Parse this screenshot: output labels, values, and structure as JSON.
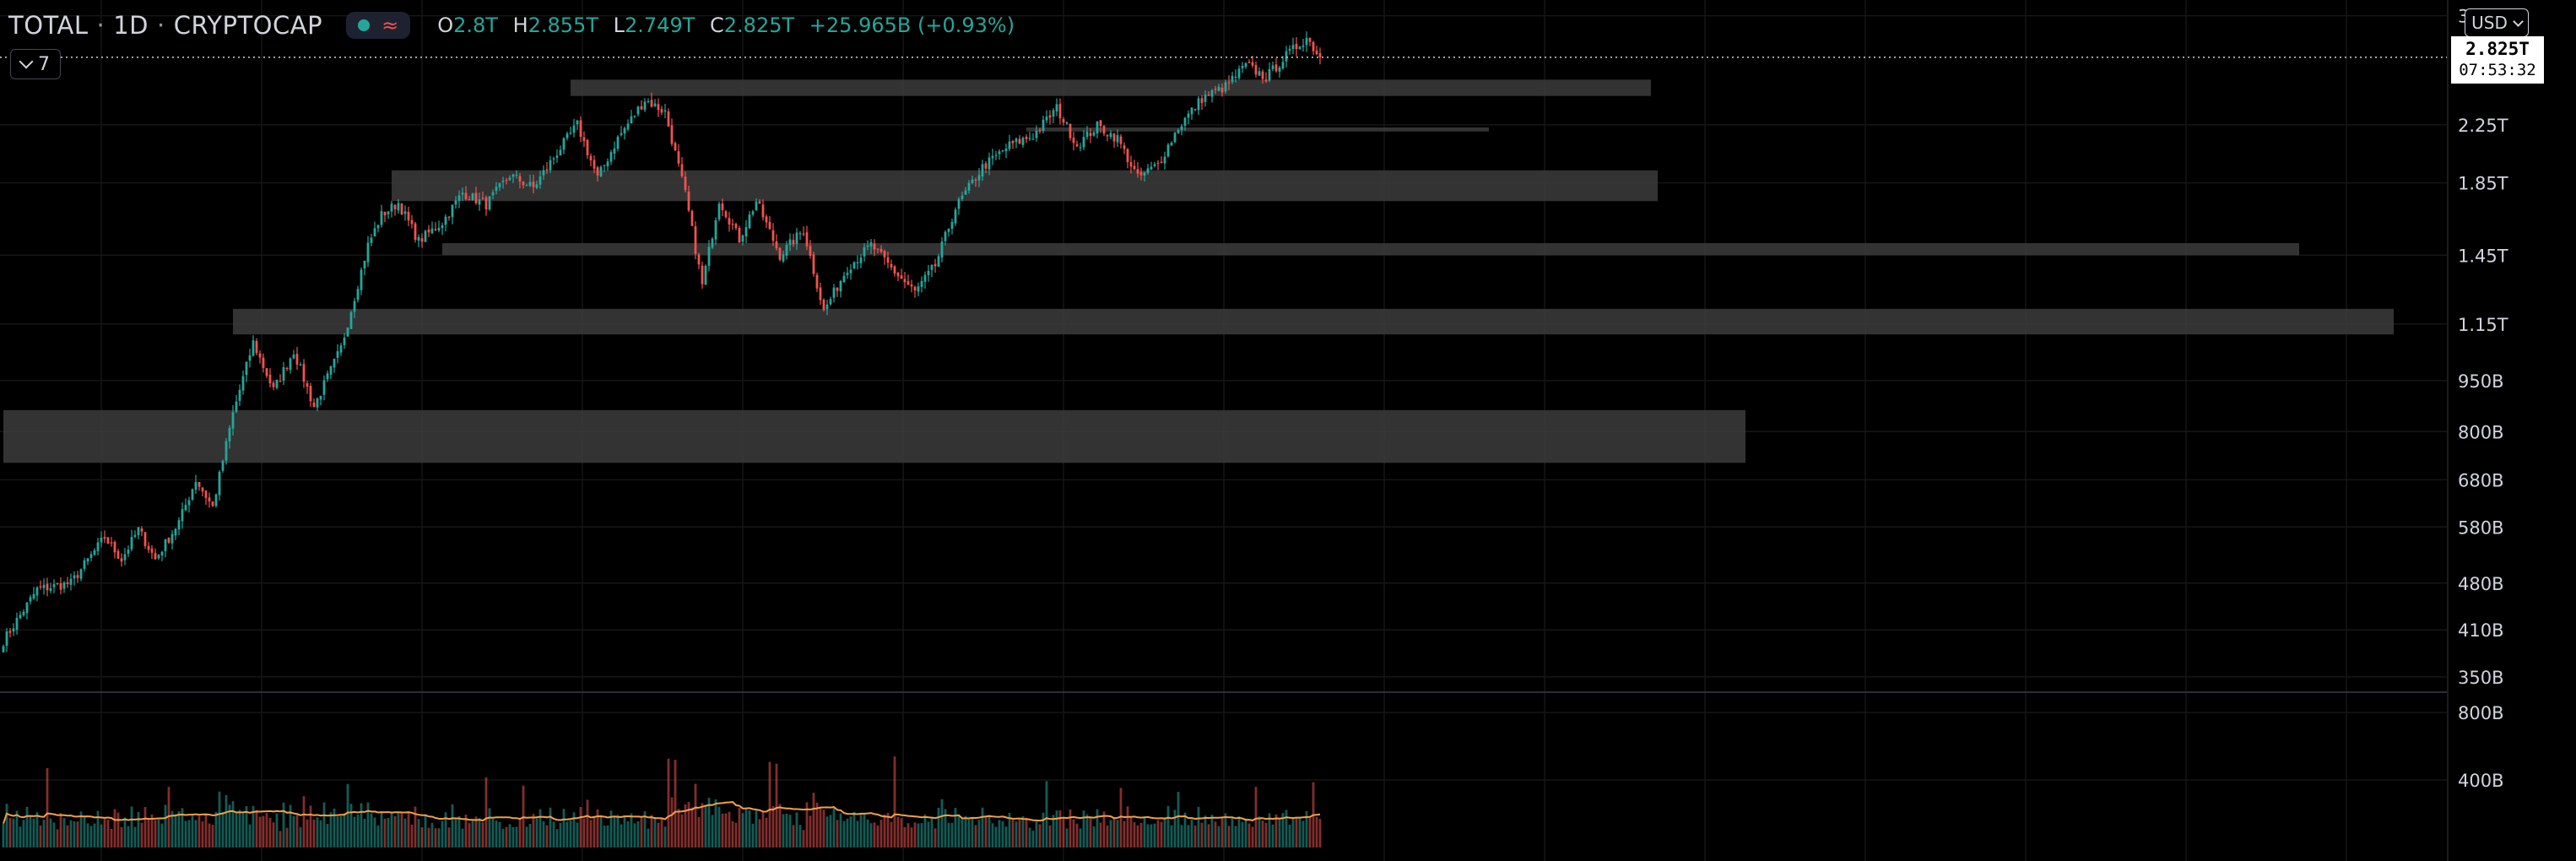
{
  "header": {
    "symbol": "TOTAL",
    "interval": "1D",
    "exchange": "CRYPTOCAP",
    "status_icons": [
      "market-open-dot-icon",
      "wave-icon"
    ],
    "ohlc": {
      "o_label": "O",
      "o": "2.8T",
      "h_label": "H",
      "h": "2.855T",
      "l_label": "L",
      "l": "2.749T",
      "c_label": "C",
      "c": "2.825T",
      "change": "+25.965B (+0.93%)"
    }
  },
  "collapse_button": {
    "label": "7"
  },
  "currency_selector": {
    "value": "USD"
  },
  "last_price_tag": {
    "price": "2.825T",
    "countdown": "07:53:32"
  },
  "colors": {
    "up": "#26a69a",
    "down": "#ef5350",
    "background": "#000000",
    "zone": "#3c3c3c",
    "volume_ma": "#f0a04b",
    "axis_text": "#d1d4dc"
  },
  "chart_data": [
    {
      "type": "candlestick",
      "scale": "log",
      "y_axis_ticks": [
        "3.25T",
        "2.25T",
        "1.85T",
        "1.45T",
        "1.15T",
        "950B",
        "800B",
        "680B",
        "580B",
        "480B",
        "410B",
        "350B"
      ],
      "y_axis_values": [
        3250,
        2250,
        1850,
        1450,
        1150,
        950,
        800,
        680,
        580,
        480,
        410,
        350
      ],
      "unit": "B",
      "ylim": [
        340,
        3350
      ],
      "last_price": 2825,
      "grid": true,
      "anchors": [
        [
          0,
          395
        ],
        [
          10,
          470
        ],
        [
          20,
          480
        ],
        [
          30,
          560
        ],
        [
          35,
          520
        ],
        [
          40,
          575
        ],
        [
          45,
          520
        ],
        [
          52,
          590
        ],
        [
          57,
          680
        ],
        [
          62,
          620
        ],
        [
          68,
          850
        ],
        [
          74,
          1080
        ],
        [
          80,
          920
        ],
        [
          86,
          1050
        ],
        [
          92,
          870
        ],
        [
          100,
          1060
        ],
        [
          108,
          1500
        ],
        [
          112,
          1660
        ],
        [
          117,
          1730
        ],
        [
          123,
          1520
        ],
        [
          130,
          1620
        ],
        [
          136,
          1790
        ],
        [
          143,
          1720
        ],
        [
          150,
          1900
        ],
        [
          157,
          1820
        ],
        [
          164,
          2050
        ],
        [
          170,
          2250
        ],
        [
          176,
          1880
        ],
        [
          182,
          2150
        ],
        [
          190,
          2450
        ],
        [
          196,
          2350
        ],
        [
          202,
          1780
        ],
        [
          207,
          1310
        ],
        [
          212,
          1750
        ],
        [
          218,
          1530
        ],
        [
          223,
          1740
        ],
        [
          230,
          1450
        ],
        [
          237,
          1580
        ],
        [
          243,
          1200
        ],
        [
          250,
          1390
        ],
        [
          257,
          1500
        ],
        [
          264,
          1370
        ],
        [
          270,
          1280
        ],
        [
          276,
          1400
        ],
        [
          282,
          1700
        ],
        [
          290,
          1950
        ],
        [
          298,
          2100
        ],
        [
          305,
          2170
        ],
        [
          312,
          2380
        ],
        [
          318,
          2100
        ],
        [
          324,
          2240
        ],
        [
          330,
          2150
        ],
        [
          336,
          1880
        ],
        [
          342,
          1970
        ],
        [
          348,
          2230
        ],
        [
          355,
          2460
        ],
        [
          362,
          2560
        ],
        [
          368,
          2750
        ],
        [
          374,
          2640
        ],
        [
          380,
          2840
        ],
        [
          386,
          3020
        ],
        [
          390,
          2825
        ]
      ],
      "n_candles": 391
    },
    {
      "type": "bar",
      "name": "Volume",
      "y_axis_ticks": [
        "800B",
        "400B"
      ],
      "y_axis_values": [
        800,
        400
      ],
      "unit": "B",
      "ylim": [
        0,
        880
      ],
      "moving_average": true
    }
  ],
  "zones": [
    {
      "from": 2480,
      "to": 2620,
      "x_start": 168,
      "x_end": 488
    },
    {
      "from": 2200,
      "to": 2230,
      "x_start": 303,
      "x_end": 440
    },
    {
      "from": 1740,
      "to": 1930,
      "x_start": 115,
      "x_end": 490
    },
    {
      "from": 1450,
      "to": 1510,
      "x_start": 130,
      "x_end": 680
    },
    {
      "from": 1110,
      "to": 1210,
      "x_start": 68,
      "x_end": 708
    },
    {
      "from": 720,
      "to": 860,
      "x_start": 0,
      "x_end": 516
    }
  ]
}
